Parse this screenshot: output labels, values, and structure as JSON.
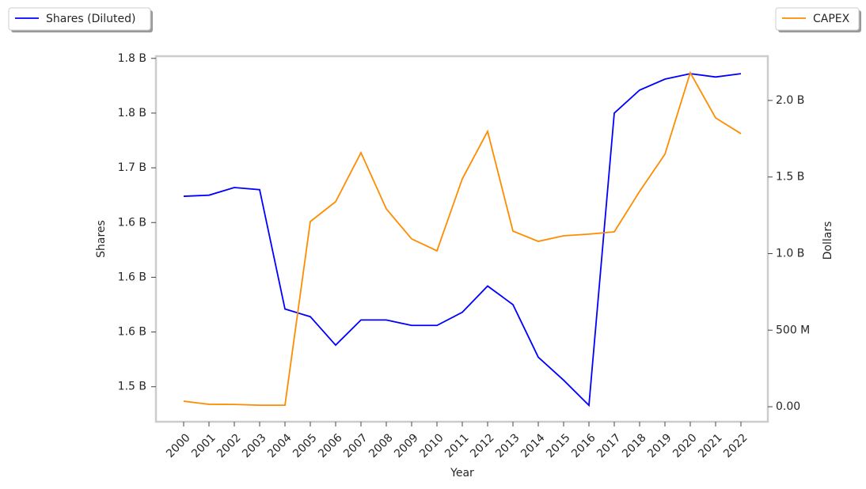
{
  "chart_data": {
    "type": "line",
    "x_label": "Year",
    "y_label": "Shares",
    "y2_label": "Dollars",
    "categories": [
      "2000",
      "2001",
      "2002",
      "2003",
      "2004",
      "2005",
      "2006",
      "2007",
      "2008",
      "2009",
      "2010",
      "2011",
      "2012",
      "2013",
      "2014",
      "2015",
      "2016",
      "2017",
      "2018",
      "2019",
      "2020",
      "2021",
      "2022"
    ],
    "series": [
      {
        "name": "Shares (Diluted)",
        "color": "#0000ff",
        "axis": "y",
        "values": [
          1674000000,
          1675000000,
          1682000000,
          1680000000,
          1571000000,
          1564000000,
          1538000000,
          1561000000,
          1561000000,
          1556000000,
          1556000000,
          1568000000,
          1592000000,
          1575000000,
          1527000000,
          1506000000,
          1483000000,
          1750000000,
          1771000000,
          1781000000,
          1786000000,
          1783000000,
          1786000000
        ]
      },
      {
        "name": "CAPEX",
        "color": "#ff8c00",
        "axis": "y2",
        "values": [
          36000000,
          16000000,
          15000000,
          10000000,
          10000000,
          1209000000,
          1339000000,
          1659000000,
          1292000000,
          1096000000,
          1018000000,
          1488000000,
          1798000000,
          1147000000,
          1080000000,
          1116000000,
          1127000000,
          1142000000,
          1406000000,
          1649000000,
          2181000000,
          1886000000,
          1783000000
        ]
      }
    ],
    "ylim": [
      1468000000,
      1802000000
    ],
    "yticks": [
      {
        "value": 1500000000,
        "label": "1.5 B"
      },
      {
        "value": 1550000000,
        "label": "1.6 B"
      },
      {
        "value": 1600000000,
        "label": "1.6 B"
      },
      {
        "value": 1650000000,
        "label": "1.6 B"
      },
      {
        "value": 1700000000,
        "label": "1.7 B"
      },
      {
        "value": 1750000000,
        "label": "1.8 B"
      },
      {
        "value": 1800000000,
        "label": "1.8 B"
      }
    ],
    "y2lim": [
      -98000000,
      2289000000
    ],
    "y2ticks": [
      {
        "value": 0,
        "label": "0.00"
      },
      {
        "value": 500000000,
        "label": "500 M"
      },
      {
        "value": 1000000000,
        "label": "1.0 B"
      },
      {
        "value": 1500000000,
        "label": "1.5 B"
      },
      {
        "value": 2000000000,
        "label": "2.0 B"
      }
    ],
    "grid": false
  }
}
